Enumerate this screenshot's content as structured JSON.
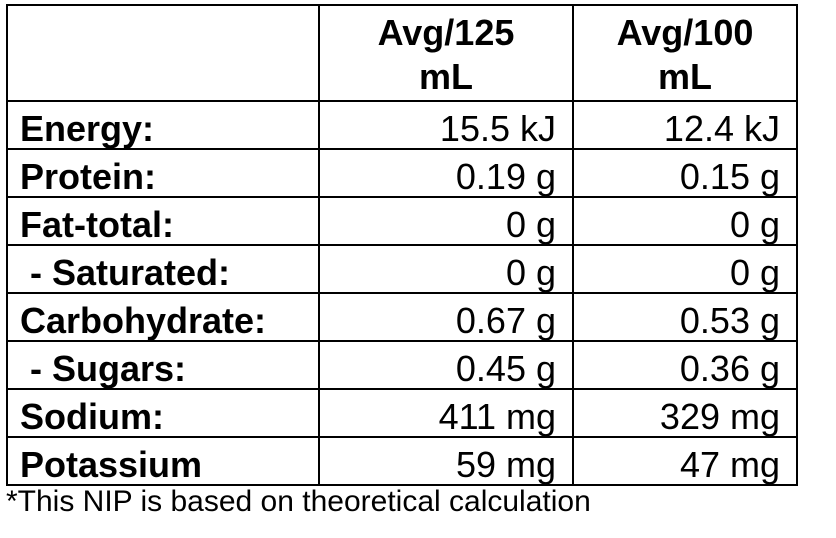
{
  "header": {
    "col1_label": "",
    "col2_label_line1": "Avg/125",
    "col2_label_line2": "mL",
    "col3_label_line1": "Avg/100",
    "col3_label_line2": "mL"
  },
  "rows": [
    {
      "label": "Energy:",
      "per_125": "15.5 kJ",
      "per_100": "12.4 kJ"
    },
    {
      "label": "Protein:",
      "per_125": "0.19 g",
      "per_100": "0.15 g"
    },
    {
      "label": "Fat-total:",
      "per_125": "0 g",
      "per_100": "0 g"
    },
    {
      "label": " - Saturated:",
      "per_125": "0 g",
      "per_100": "0 g"
    },
    {
      "label": "Carbohydrate:",
      "per_125": "0.67 g",
      "per_100": "0.53 g"
    },
    {
      "label": " - Sugars:",
      "per_125": "0.45 g",
      "per_100": "0.36 g"
    },
    {
      "label": "Sodium:",
      "per_125": "411 mg",
      "per_100": "329 mg"
    },
    {
      "label": "Potassium",
      "per_125": "59 mg",
      "per_100": "47 mg"
    }
  ],
  "footnote": "*This NIP is based on theoretical calculation"
}
